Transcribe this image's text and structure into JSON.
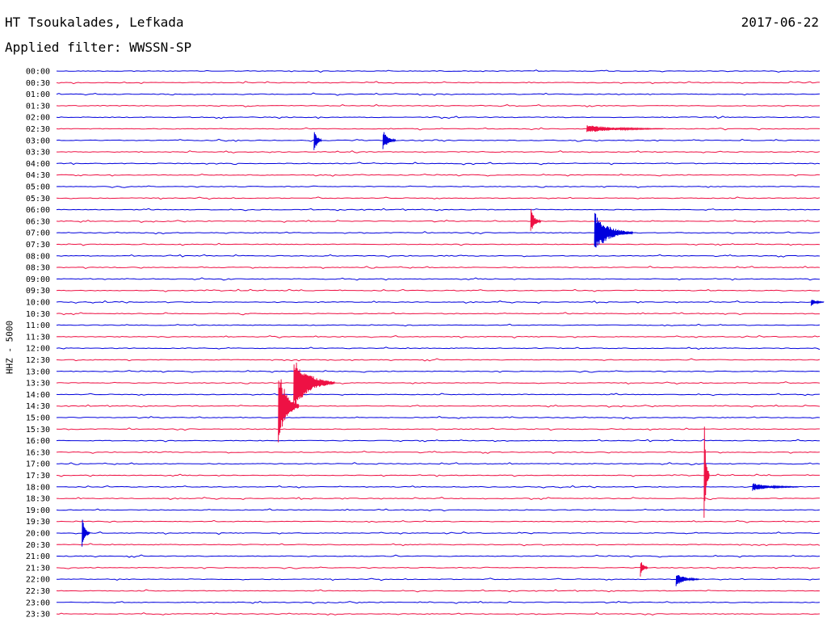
{
  "header": {
    "station": "HT Tsoukalades, Lefkada",
    "date": "2017-06-22",
    "filter": "Applied filter: WWSSN-SP"
  },
  "channel_label": "HHZ - 5000",
  "colors": {
    "even_trace": "#0000dd",
    "odd_trace": "#ee1144"
  },
  "chart_data": {
    "type": "line",
    "title": "HT Tsoukalades, Lefkada",
    "subtitle": "Applied filter: WWSSN-SP",
    "ylabel": "HHZ - 5000",
    "y_tick_labels": [
      "00:00",
      "00:30",
      "01:00",
      "01:30",
      "02:00",
      "02:30",
      "03:00",
      "03:30",
      "04:00",
      "04:30",
      "05:00",
      "05:30",
      "06:00",
      "06:30",
      "07:00",
      "07:30",
      "08:00",
      "08:30",
      "09:00",
      "09:30",
      "10:00",
      "10:30",
      "11:00",
      "11:30",
      "12:00",
      "12:30",
      "13:00",
      "13:30",
      "14:00",
      "14:30",
      "15:00",
      "15:30",
      "16:00",
      "16:30",
      "17:00",
      "17:30",
      "18:00",
      "18:30",
      "19:00",
      "19:30",
      "20:00",
      "20:30",
      "21:00",
      "21:30",
      "22:00",
      "22:30",
      "23:00",
      "23:30"
    ],
    "x_range_minutes": [
      0,
      30
    ],
    "grid": false,
    "legend": "none",
    "events": [
      {
        "row": "03:00",
        "minute": 10.1,
        "amplitude": 18,
        "duration": 0.3
      },
      {
        "row": "03:00",
        "minute": 12.8,
        "amplitude": 14,
        "duration": 0.5
      },
      {
        "row": "02:30",
        "minute": 20.8,
        "amplitude": 5,
        "duration": 3.0
      },
      {
        "row": "06:30",
        "minute": 18.6,
        "amplitude": 18,
        "duration": 0.4
      },
      {
        "row": "07:00",
        "minute": 21.1,
        "amplitude": 26,
        "duration": 1.5
      },
      {
        "row": "13:30",
        "minute": 9.3,
        "amplitude": 35,
        "duration": 1.6
      },
      {
        "row": "14:30",
        "minute": 8.7,
        "amplitude": 52,
        "duration": 0.8
      },
      {
        "row": "17:30",
        "minute": 25.4,
        "amplitude": 76,
        "duration": 0.2
      },
      {
        "row": "18:00",
        "minute": 27.3,
        "amplitude": 5,
        "duration": 1.8
      },
      {
        "row": "20:00",
        "minute": 1.0,
        "amplitude": 26,
        "duration": 0.3
      },
      {
        "row": "21:30",
        "minute": 22.9,
        "amplitude": 12,
        "duration": 0.3
      },
      {
        "row": "22:00",
        "minute": 24.3,
        "amplitude": 9,
        "duration": 0.9
      },
      {
        "row": "10:00",
        "minute": 29.6,
        "amplitude": 5,
        "duration": 0.5
      }
    ]
  }
}
